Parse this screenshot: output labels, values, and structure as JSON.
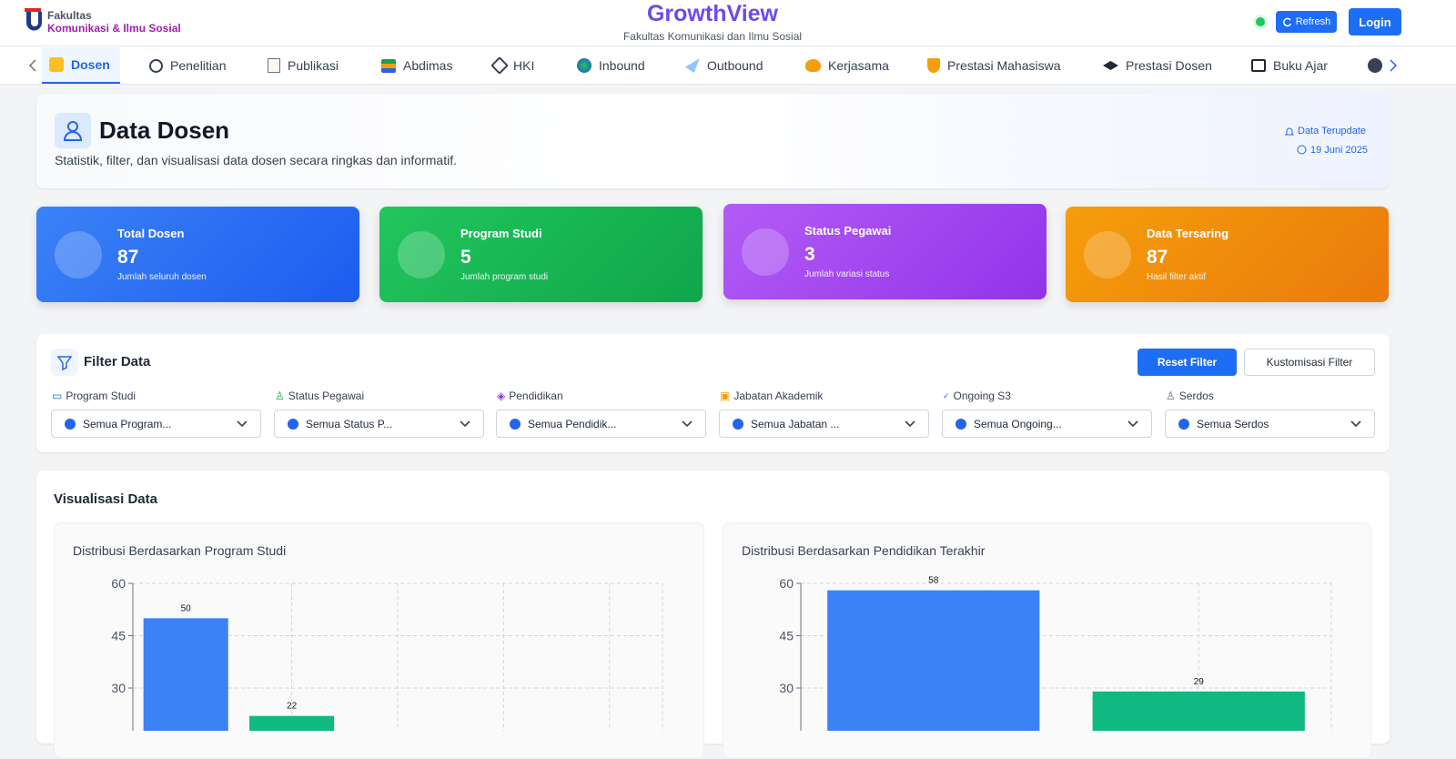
{
  "header": {
    "logo_line1": "Fakultas",
    "logo_line2": "Komunikasi & Ilmu Sosial",
    "title": "GrowthView",
    "subtitle": "Fakultas Komunikasi dan Ilmu Sosial",
    "refresh": "Refresh",
    "login": "Login"
  },
  "nav": {
    "items": [
      "Dosen",
      "Penelitian",
      "Publikasi",
      "Abdimas",
      "HKI",
      "Inbound",
      "Outbound",
      "Kerjasama",
      "Prestasi Mahasiswa",
      "Prestasi Dosen",
      "Buku Ajar"
    ]
  },
  "hero": {
    "title": "Data Dosen",
    "description": "Statistik, filter, dan visualisasi data dosen secara ringkas dan informatif.",
    "updated_label": "Data Terupdate",
    "updated_date": "19 Juni 2025"
  },
  "stats": [
    {
      "label": "Total Dosen",
      "value": 87,
      "note": "Jumlah seluruh dosen"
    },
    {
      "label": "Program Studi",
      "value": 5,
      "note": "Jumlah program studi"
    },
    {
      "label": "Status Pegawai",
      "value": 3,
      "note": "Jumlah variasi status"
    },
    {
      "label": "Data Tersaring",
      "value": 87,
      "note": "Hasil filter aktif"
    }
  ],
  "filter": {
    "title": "Filter Data",
    "reset": "Reset Filter",
    "customize": "Kustomisasi Filter",
    "fields": [
      {
        "label": "Program Studi",
        "value": "Semua Program..."
      },
      {
        "label": "Status Pegawai",
        "value": "Semua Status P..."
      },
      {
        "label": "Pendidikan",
        "value": "Semua Pendidik..."
      },
      {
        "label": "Jabatan Akademik",
        "value": "Semua Jabatan ..."
      },
      {
        "label": "Ongoing S3",
        "value": "Semua Ongoing..."
      },
      {
        "label": "Serdos",
        "value": "Semua Serdos"
      }
    ]
  },
  "visualization": {
    "title": "Visualisasi Data"
  },
  "chart_data": [
    {
      "type": "bar",
      "title": "Distribusi Berdasarkan Program Studi",
      "categories": [
        null,
        null
      ],
      "values": [
        50,
        22
      ],
      "colors": [
        "#3b82f6",
        "#10b981"
      ],
      "ylim": [
        0,
        60
      ],
      "yticks": [
        30,
        45,
        60
      ],
      "grid": true
    },
    {
      "type": "bar",
      "title": "Distribusi Berdasarkan Pendidikan Terakhir",
      "categories": [
        null,
        null
      ],
      "values": [
        58,
        29
      ],
      "colors": [
        "#3b82f6",
        "#10b981"
      ],
      "ylim": [
        0,
        60
      ],
      "yticks": [
        30,
        45,
        60
      ],
      "grid": true
    }
  ]
}
